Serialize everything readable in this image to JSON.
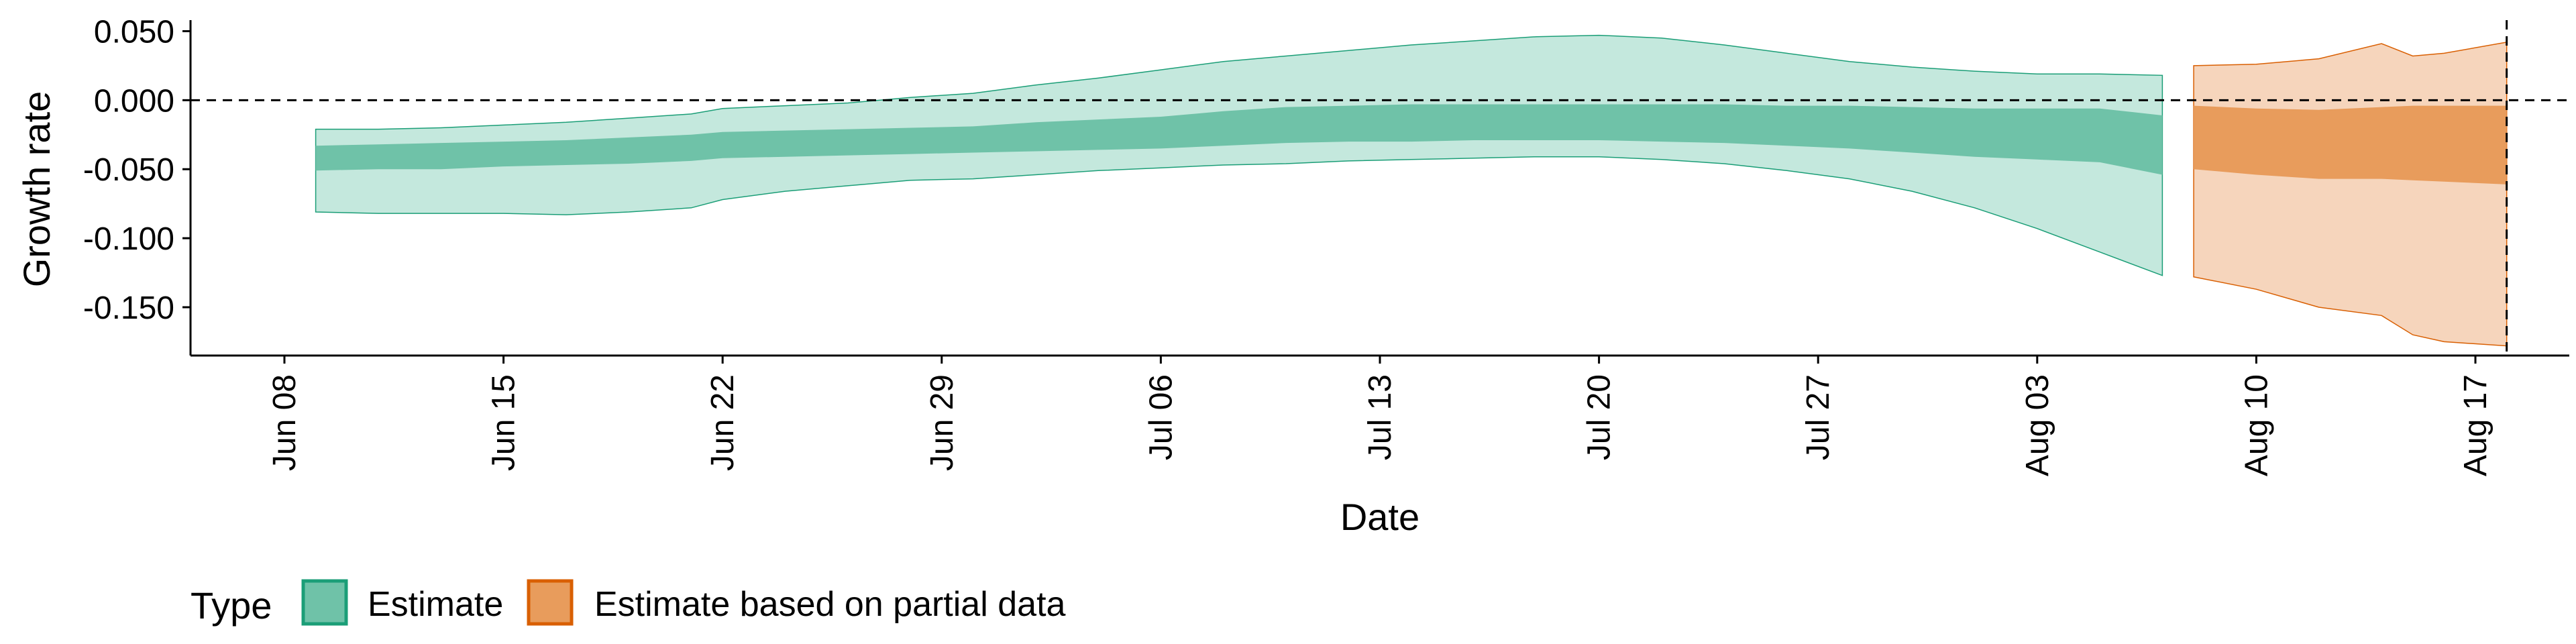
{
  "chart_data": {
    "type": "area",
    "title": "",
    "xlabel": "Date",
    "ylabel": "Growth rate",
    "x_ticks": [
      "Jun 08",
      "Jun 15",
      "Jun 22",
      "Jun 29",
      "Jul 06",
      "Jul 13",
      "Jul 20",
      "Jul 27",
      "Aug 03",
      "Aug 10",
      "Aug 17"
    ],
    "y_ticks": [
      "0.050",
      "0.000",
      "-0.050",
      "-0.100",
      "-0.150"
    ],
    "ylim": [
      -0.185,
      0.058
    ],
    "xlim": [
      "2020-06-05",
      "2020-08-20"
    ],
    "reference_lines": [
      {
        "axis": "y",
        "value": 0,
        "style": "dashed"
      },
      {
        "axis": "x",
        "value": "2020-08-18",
        "style": "dashed"
      }
    ],
    "legend": {
      "title": "Type",
      "position": "bottom",
      "entries": [
        "Estimate",
        "Estimate based on partial data"
      ]
    },
    "series": [
      {
        "name": "Estimate",
        "color": "#1b9e77",
        "x": [
          "2020-06-09",
          "2020-06-11",
          "2020-06-13",
          "2020-06-15",
          "2020-06-17",
          "2020-06-19",
          "2020-06-21",
          "2020-06-22",
          "2020-06-24",
          "2020-06-26",
          "2020-06-28",
          "2020-06-30",
          "2020-07-02",
          "2020-07-04",
          "2020-07-06",
          "2020-07-08",
          "2020-07-10",
          "2020-07-12",
          "2020-07-14",
          "2020-07-16",
          "2020-07-18",
          "2020-07-20",
          "2020-07-22",
          "2020-07-24",
          "2020-07-26",
          "2020-07-28",
          "2020-07-30",
          "2020-08-01",
          "2020-08-03",
          "2020-08-05",
          "2020-08-07"
        ],
        "lower_90": [
          -0.081,
          -0.082,
          -0.082,
          -0.082,
          -0.083,
          -0.081,
          -0.078,
          -0.072,
          -0.066,
          -0.062,
          -0.058,
          -0.057,
          -0.054,
          -0.051,
          -0.049,
          -0.047,
          -0.046,
          -0.044,
          -0.043,
          -0.042,
          -0.041,
          -0.041,
          -0.043,
          -0.046,
          -0.051,
          -0.057,
          -0.066,
          -0.078,
          -0.093,
          -0.11,
          -0.127
        ],
        "lower_50": [
          -0.051,
          -0.05,
          -0.05,
          -0.048,
          -0.047,
          -0.046,
          -0.044,
          -0.042,
          -0.041,
          -0.04,
          -0.039,
          -0.038,
          -0.037,
          -0.036,
          -0.035,
          -0.033,
          -0.031,
          -0.03,
          -0.03,
          -0.029,
          -0.029,
          -0.029,
          -0.03,
          -0.031,
          -0.033,
          -0.035,
          -0.038,
          -0.041,
          -0.043,
          -0.045,
          -0.054
        ],
        "upper_50": [
          -0.033,
          -0.032,
          -0.031,
          -0.03,
          -0.029,
          -0.027,
          -0.025,
          -0.023,
          -0.022,
          -0.021,
          -0.02,
          -0.019,
          -0.016,
          -0.014,
          -0.012,
          -0.008,
          -0.005,
          -0.004,
          -0.003,
          -0.003,
          -0.003,
          -0.003,
          -0.003,
          -0.003,
          -0.004,
          -0.004,
          -0.005,
          -0.006,
          -0.006,
          -0.006,
          -0.011
        ],
        "upper_90": [
          -0.021,
          -0.021,
          -0.02,
          -0.018,
          -0.016,
          -0.013,
          -0.01,
          -0.006,
          -0.004,
          -0.002,
          0.002,
          0.005,
          0.011,
          0.016,
          0.022,
          0.028,
          0.032,
          0.036,
          0.04,
          0.043,
          0.046,
          0.047,
          0.045,
          0.04,
          0.034,
          0.028,
          0.024,
          0.021,
          0.019,
          0.019,
          0.018
        ]
      },
      {
        "name": "Estimate based on partial data",
        "color": "#d95f02",
        "x": [
          "2020-08-08",
          "2020-08-10",
          "2020-08-12",
          "2020-08-14",
          "2020-08-15",
          "2020-08-16",
          "2020-08-18"
        ],
        "lower_90": [
          -0.128,
          -0.137,
          -0.15,
          -0.156,
          -0.17,
          -0.175,
          -0.178
        ],
        "lower_50": [
          -0.05,
          -0.054,
          -0.057,
          -0.057,
          -0.058,
          -0.059,
          -0.061
        ],
        "upper_50": [
          -0.004,
          -0.006,
          -0.007,
          -0.005,
          -0.004,
          -0.004,
          -0.004
        ],
        "upper_90": [
          0.025,
          0.026,
          0.03,
          0.041,
          0.032,
          0.034,
          0.042
        ]
      }
    ]
  }
}
